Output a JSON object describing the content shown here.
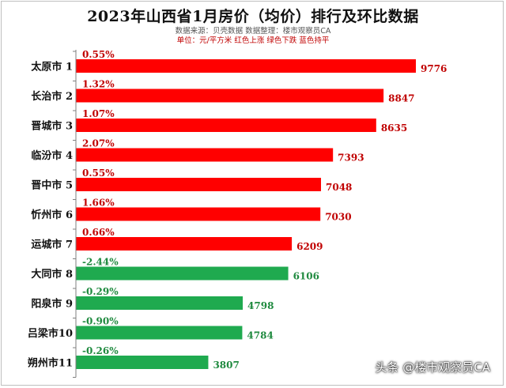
{
  "title": "2023年山西省1月房价（均价）排行及环比数据",
  "source_line": "数据来源：贝壳数据    数据整理：楼市观察员CA",
  "unit_line": "单位：元/平方米    红色上涨    绿色下跌    蓝色持平",
  "watermark": "头条 @楼市观察员CA",
  "colors": {
    "up": "#ff0000",
    "down": "#1faa4f",
    "up_text": "#c00000",
    "down_text": "#1f8a3f"
  },
  "chart_data": {
    "type": "bar",
    "orientation": "horizontal",
    "categories": [
      "太原市 1",
      "长治市 2",
      "晋城市 3",
      "临汾市 4",
      "晋中市 5",
      "忻州市 6",
      "运城市 7",
      "大同市 8",
      "阳泉市 9",
      "吕梁市10",
      "朔州市11"
    ],
    "values": [
      9776,
      8847,
      8635,
      7393,
      7048,
      7030,
      6209,
      6106,
      4798,
      4784,
      3807
    ],
    "change_labels": [
      "0.55%",
      "1.32%",
      "1.07%",
      "2.07%",
      "0.55%",
      "1.66%",
      "0.66%",
      "-2.44%",
      "-0.29%",
      "-0.90%",
      "-0.26%"
    ],
    "change_values": [
      0.55,
      1.32,
      1.07,
      2.07,
      0.55,
      1.66,
      0.66,
      -2.44,
      -0.29,
      -0.9,
      -0.26
    ],
    "xlim": [
      0,
      10000
    ],
    "grid": false
  }
}
